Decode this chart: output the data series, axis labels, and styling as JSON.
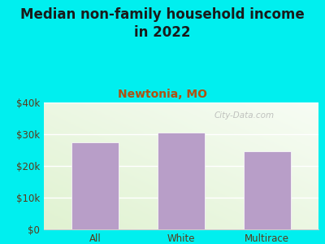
{
  "title": "Median non-family household income\nin 2022",
  "subtitle": "Newtonia, MO",
  "categories": [
    "All",
    "White",
    "Multirace"
  ],
  "values": [
    27500,
    30500,
    24500
  ],
  "bar_color": "#b89ec8",
  "background_color": "#00efef",
  "plot_bg_color": "#e8f2e0",
  "title_color": "#1a1a1a",
  "subtitle_color": "#b05010",
  "tick_label_color": "#5a3a1a",
  "ylim": [
    0,
    40000
  ],
  "yticks": [
    0,
    10000,
    20000,
    30000,
    40000
  ],
  "ytick_labels": [
    "$0",
    "$10k",
    "$20k",
    "$30k",
    "$40k"
  ],
  "watermark": "City-Data.com",
  "title_fontsize": 12,
  "subtitle_fontsize": 10,
  "tick_fontsize": 8.5,
  "bar_width": 0.55
}
